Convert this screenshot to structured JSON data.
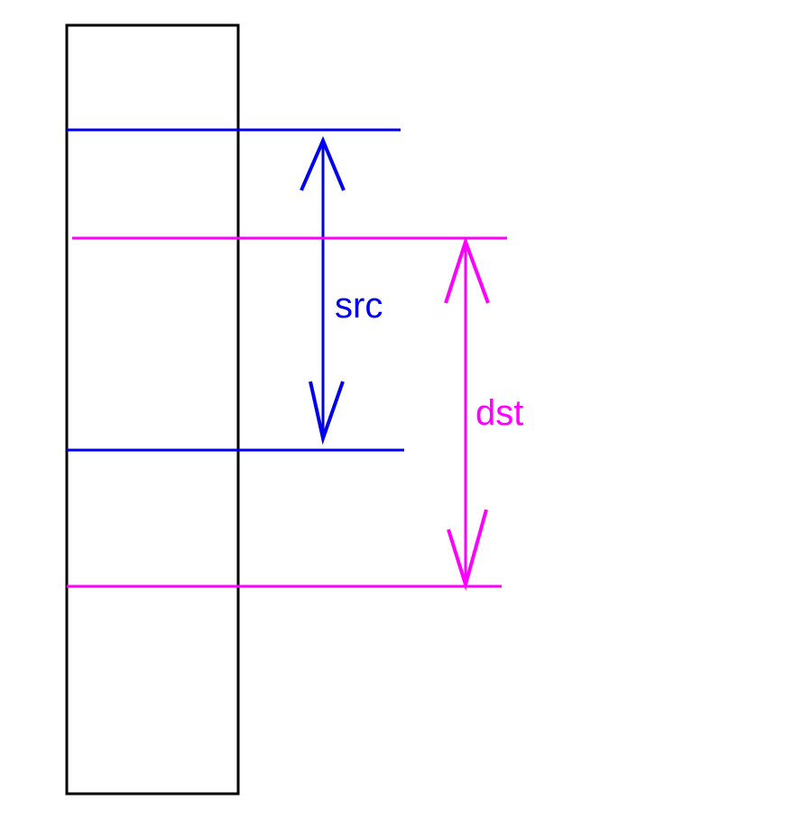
{
  "labels": {
    "src": "src",
    "dst": "dst"
  },
  "colors": {
    "src": "#0000ee",
    "dst": "#ff00ff",
    "buffer": "#000000",
    "background": "#ffffff"
  }
}
